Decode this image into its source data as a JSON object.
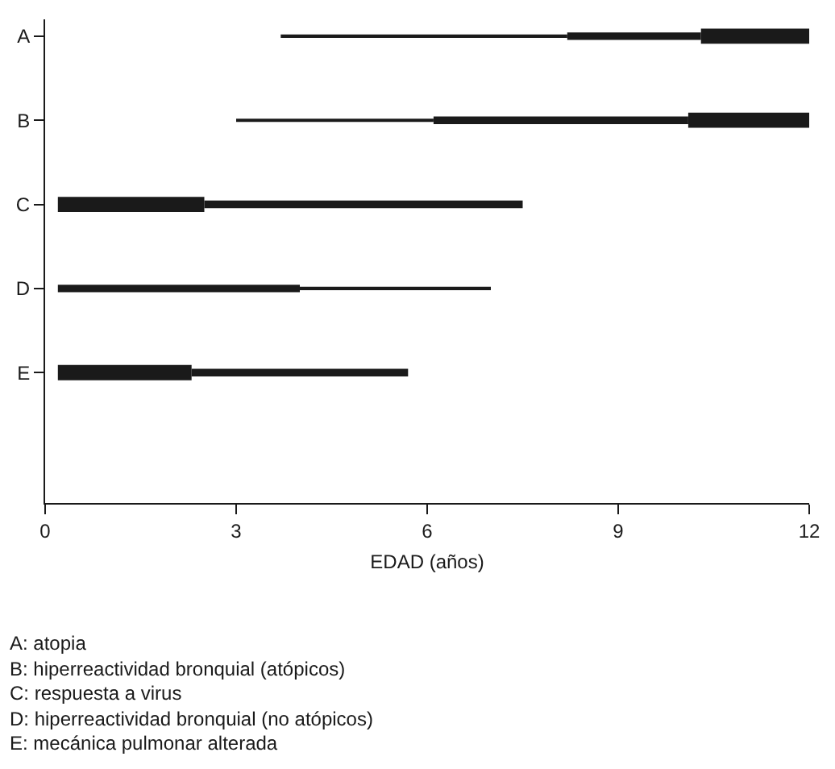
{
  "chart_data": {
    "type": "bar",
    "orientation": "horizontal",
    "xlabel": "EDAD (años)",
    "categories": [
      "A",
      "B",
      "C",
      "D",
      "E",
      null
    ],
    "xlim": [
      0,
      12
    ],
    "xticks": [
      0,
      3,
      6,
      9,
      12
    ],
    "series": [
      {
        "color": "#1a1a1a",
        "base": [
          3.7,
          3.0,
          null,
          4.0,
          null,
          null
        ],
        "values": [
          4.5,
          3.1,
          null,
          3.0,
          null,
          null
        ]
      },
      {
        "color": "#1a1a1a",
        "base": [
          8.2,
          6.1,
          2.5,
          0.2,
          2.3,
          null
        ],
        "values": [
          2.1,
          4.0,
          5.0,
          3.8,
          3.4,
          null
        ]
      },
      {
        "color": "#1a1a1a",
        "base": [
          10.3,
          10.1,
          0.2,
          null,
          0.2,
          null
        ],
        "values": [
          1.7,
          1.9,
          2.3,
          null,
          2.1,
          null
        ]
      }
    ],
    "annotations": [
      "A: atopia",
      "B: hiperreactividad bronquial (atópicos)",
      "C: respuesta a virus",
      "D: hiperreactividad bronquial (no atópicos)",
      "E: mecánica pulmonar alterada"
    ]
  }
}
